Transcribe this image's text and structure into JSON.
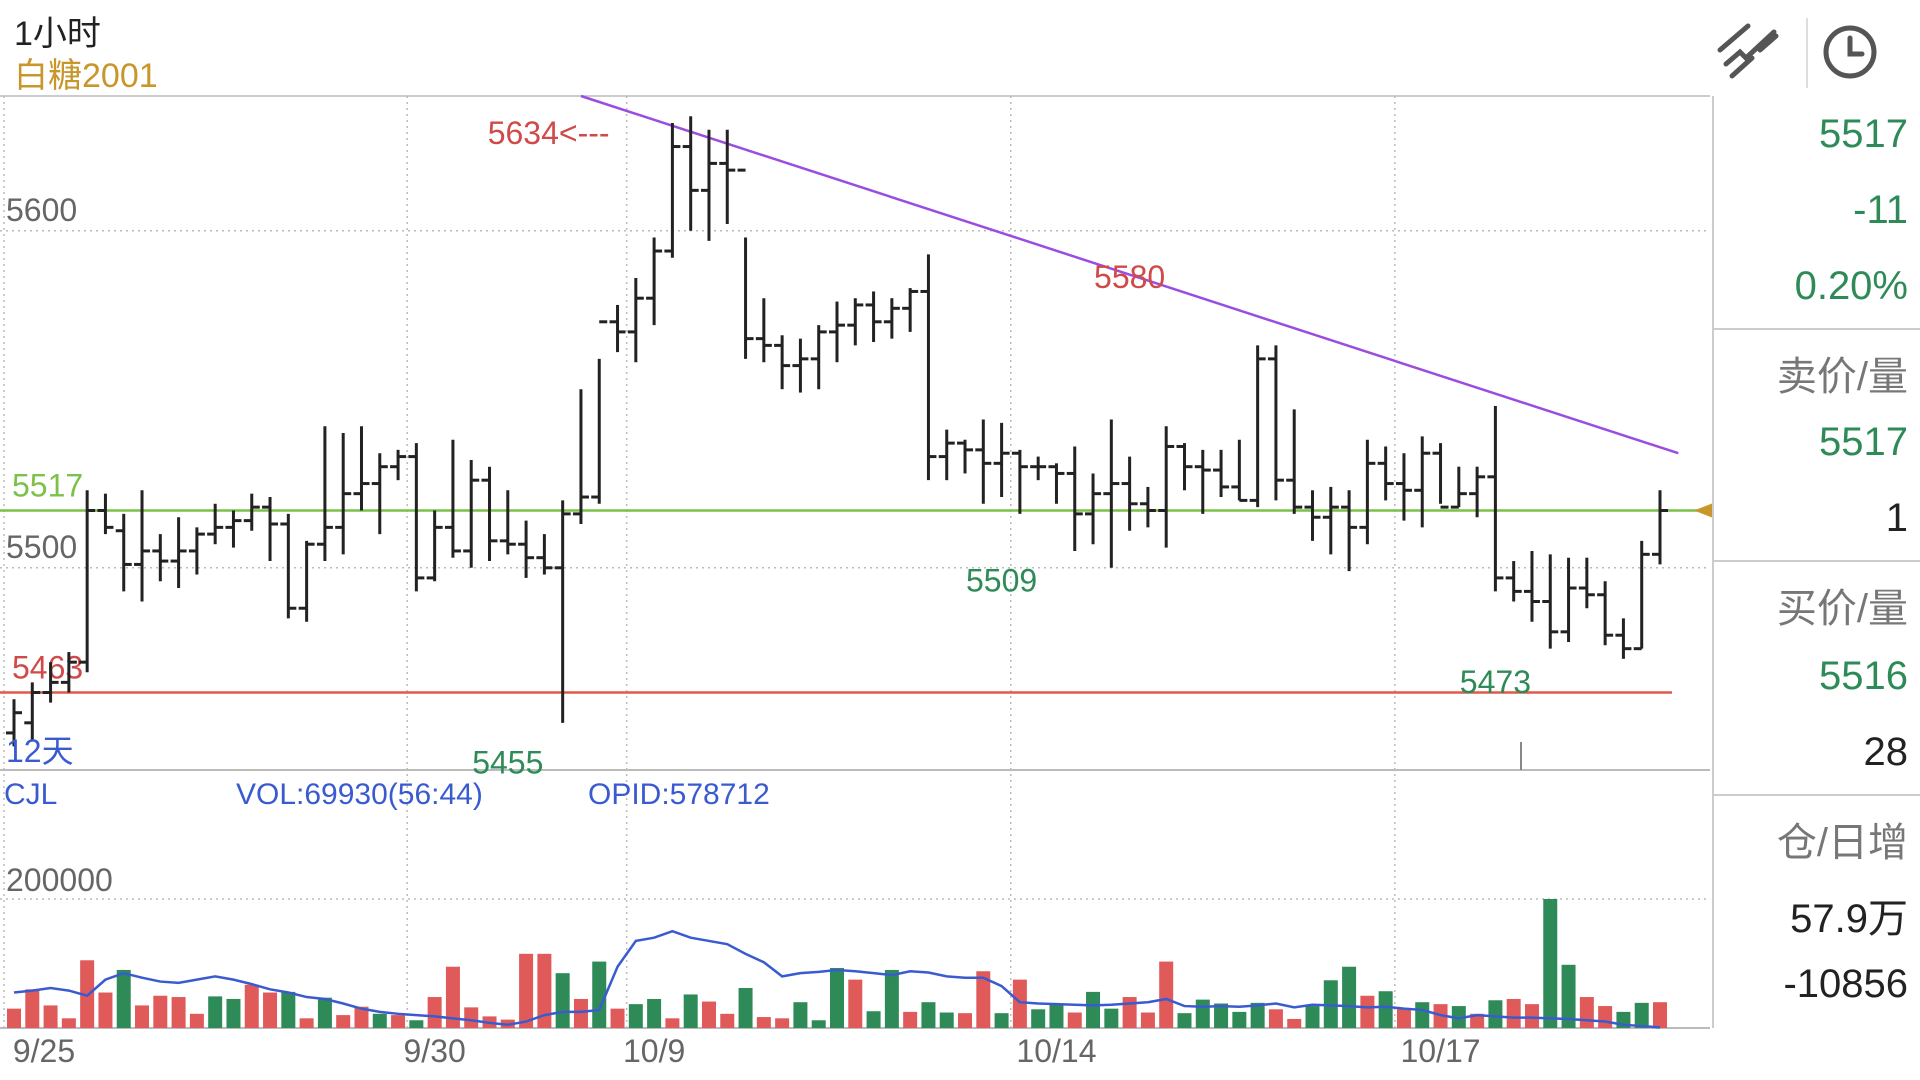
{
  "header": {
    "period": "1小时",
    "symbol": "白糖2001",
    "icons": [
      "drawing-tool-icon",
      "clock-icon"
    ]
  },
  "colors": {
    "up": "#e05a5a",
    "down": "#2e8b57",
    "bar": "#222222",
    "trendline": "#9b4de0",
    "support": "#e05a4a",
    "current": "#7cc14a",
    "opid": "#3a5bd0",
    "price_label_green": "#2e8b57",
    "price_label_red": "#d04a4a"
  },
  "chart_data": [
    {
      "type": "ohlc",
      "ylim": [
        5440,
        5640
      ],
      "y_ticks": [
        "5600",
        "5500"
      ],
      "y_tick_values": [
        5600,
        5500
      ],
      "x_tick_labels": [
        "9/25",
        "9/30",
        "10/9",
        "10/14",
        "10/17"
      ],
      "x_tick_index": [
        2,
        23,
        35,
        57,
        78
      ],
      "date_gridlines_index": [
        0,
        21,
        33,
        54,
        75
      ],
      "bars": [
        [
          5451,
          5461,
          5447,
          5457
        ],
        [
          5454,
          5466,
          5449,
          5463
        ],
        [
          5463,
          5472,
          5460,
          5466
        ],
        [
          5466,
          5475,
          5463,
          5472
        ],
        [
          5472,
          5523,
          5469,
          5517
        ],
        [
          5517,
          5522,
          5510,
          5512
        ],
        [
          5511,
          5516,
          5493,
          5501
        ],
        [
          5501,
          5523,
          5490,
          5505
        ],
        [
          5505,
          5510,
          5496,
          5502
        ],
        [
          5502,
          5515,
          5494,
          5505
        ],
        [
          5505,
          5512,
          5498,
          5510
        ],
        [
          5510,
          5519,
          5507,
          5512
        ],
        [
          5512,
          5517,
          5506,
          5514
        ],
        [
          5514,
          5522,
          5511,
          5518
        ],
        [
          5518,
          5521,
          5502,
          5513
        ],
        [
          5513,
          5516,
          5485,
          5488
        ],
        [
          5488,
          5508,
          5484,
          5507
        ],
        [
          5507,
          5542,
          5502,
          5512
        ],
        [
          5512,
          5540,
          5504,
          5522
        ],
        [
          5522,
          5542,
          5517,
          5525
        ],
        [
          5525,
          5534,
          5510,
          5530
        ],
        [
          5530,
          5535,
          5526,
          5533
        ],
        [
          5533,
          5537,
          5493,
          5497
        ],
        [
          5497,
          5517,
          5496,
          5512
        ],
        [
          5512,
          5538,
          5503,
          5505
        ],
        [
          5505,
          5532,
          5500,
          5526
        ],
        [
          5526,
          5530,
          5502,
          5508
        ],
        [
          5508,
          5523,
          5504,
          5507
        ],
        [
          5507,
          5514,
          5497,
          5503
        ],
        [
          5503,
          5510,
          5498,
          5500
        ],
        [
          5500,
          5520,
          5454,
          5516
        ],
        [
          5516,
          5553,
          5513,
          5521
        ],
        [
          5521,
          5562,
          5519,
          5573
        ],
        [
          5573,
          5578,
          5564,
          5570
        ],
        [
          5570,
          5586,
          5561,
          5580
        ],
        [
          5580,
          5598,
          5572,
          5594
        ],
        [
          5594,
          5632,
          5592,
          5625
        ],
        [
          5625,
          5634,
          5600,
          5612
        ],
        [
          5612,
          5630,
          5597,
          5620
        ],
        [
          5620,
          5630,
          5602,
          5618
        ],
        [
          5618,
          5598,
          5562,
          5568
        ],
        [
          5568,
          5580,
          5561,
          5566
        ],
        [
          5566,
          5569,
          5553,
          5560
        ],
        [
          5560,
          5568,
          5552,
          5562
        ],
        [
          5562,
          5572,
          5553,
          5570
        ],
        [
          5570,
          5579,
          5561,
          5572
        ],
        [
          5572,
          5580,
          5566,
          5578
        ],
        [
          5578,
          5582,
          5567,
          5573
        ],
        [
          5573,
          5580,
          5568,
          5577
        ],
        [
          5577,
          5583,
          5570,
          5582
        ],
        [
          5582,
          5593,
          5526,
          5533
        ],
        [
          5533,
          5541,
          5526,
          5537
        ],
        [
          5537,
          5538,
          5528,
          5535
        ],
        [
          5535,
          5544,
          5519,
          5531
        ],
        [
          5531,
          5543,
          5521,
          5534
        ],
        [
          5534,
          5535,
          5516,
          5530
        ],
        [
          5530,
          5533,
          5526,
          5530
        ],
        [
          5530,
          5531,
          5519,
          5528
        ],
        [
          5528,
          5536,
          5505,
          5516
        ],
        [
          5516,
          5528,
          5507,
          5522
        ],
        [
          5522,
          5544,
          5500,
          5525
        ],
        [
          5525,
          5533,
          5511,
          5519
        ],
        [
          5519,
          5524,
          5512,
          5517
        ],
        [
          5517,
          5542,
          5506,
          5536
        ],
        [
          5536,
          5537,
          5523,
          5530
        ],
        [
          5530,
          5535,
          5516,
          5529
        ],
        [
          5529,
          5535,
          5521,
          5524
        ],
        [
          5524,
          5538,
          5520,
          5520
        ],
        [
          5520,
          5566,
          5518,
          5562
        ],
        [
          5562,
          5566,
          5520,
          5526
        ],
        [
          5526,
          5547,
          5516,
          5518
        ],
        [
          5518,
          5523,
          5508,
          5515
        ],
        [
          5515,
          5524,
          5504,
          5518
        ],
        [
          5518,
          5523,
          5499,
          5512
        ],
        [
          5512,
          5538,
          5507,
          5531
        ],
        [
          5531,
          5536,
          5520,
          5525
        ],
        [
          5525,
          5534,
          5514,
          5523
        ],
        [
          5523,
          5539,
          5512,
          5534
        ],
        [
          5534,
          5537,
          5519,
          5518
        ],
        [
          5518,
          5530,
          5518,
          5522
        ],
        [
          5522,
          5530,
          5515,
          5527
        ],
        [
          5527,
          5548,
          5493,
          5497
        ],
        [
          5497,
          5502,
          5490,
          5493
        ],
        [
          5493,
          5505,
          5484,
          5490
        ],
        [
          5490,
          5504,
          5476,
          5481
        ],
        [
          5481,
          5503,
          5478,
          5494
        ],
        [
          5494,
          5503,
          5488,
          5492
        ],
        [
          5492,
          5496,
          5477,
          5480
        ],
        [
          5480,
          5485,
          5473,
          5476
        ],
        [
          5476,
          5508,
          5476,
          5504
        ],
        [
          5504,
          5523,
          5501,
          5517
        ]
      ],
      "horizontal_lines": [
        {
          "name": "current-price-line",
          "value": 5517,
          "label": "5517"
        },
        {
          "name": "support-line",
          "value": 5463,
          "label": "5463"
        }
      ],
      "trendline": {
        "from": [
          31,
          5640
        ],
        "to": [
          91,
          5534
        ]
      },
      "annotations": [
        {
          "name": "high-label",
          "text": "5634<---",
          "index": 33,
          "value": 5634,
          "color": "red"
        },
        {
          "name": "peak-label",
          "text": "5580",
          "index": 61,
          "value": 5580,
          "color": "red"
        },
        {
          "name": "low-label-1",
          "text": "5455",
          "index": 27,
          "value": 5455,
          "color": "green"
        },
        {
          "name": "low-label-2",
          "text": "5509",
          "index": 54,
          "value": 5509,
          "color": "green"
        },
        {
          "name": "low-label-3",
          "text": "5473",
          "index": 81,
          "value": 5473,
          "color": "green"
        }
      ],
      "period_badge": "12天"
    },
    {
      "type": "bar",
      "indicator": "CJL",
      "vol_label": "VOL:69930(56:44)",
      "opid_label": "OPID:578712",
      "ylim": [
        0,
        400000
      ],
      "y_ticks": [
        "200000"
      ],
      "y_tick_values": [
        200000
      ],
      "volume": [
        {
          "v": 30000,
          "c": "u"
        },
        {
          "v": 60000,
          "c": "u"
        },
        {
          "v": 35000,
          "c": "u"
        },
        {
          "v": 15000,
          "c": "u"
        },
        {
          "v": 105000,
          "c": "u"
        },
        {
          "v": 55000,
          "c": "u"
        },
        {
          "v": 90000,
          "c": "d"
        },
        {
          "v": 35000,
          "c": "u"
        },
        {
          "v": 50000,
          "c": "u"
        },
        {
          "v": 48000,
          "c": "u"
        },
        {
          "v": 22000,
          "c": "u"
        },
        {
          "v": 49000,
          "c": "d"
        },
        {
          "v": 45000,
          "c": "d"
        },
        {
          "v": 67000,
          "c": "u"
        },
        {
          "v": 55000,
          "c": "u"
        },
        {
          "v": 56000,
          "c": "d"
        },
        {
          "v": 15000,
          "c": "u"
        },
        {
          "v": 47000,
          "c": "d"
        },
        {
          "v": 20000,
          "c": "u"
        },
        {
          "v": 33000,
          "c": "u"
        },
        {
          "v": 22000,
          "c": "d"
        },
        {
          "v": 20000,
          "c": "u"
        },
        {
          "v": 12000,
          "c": "d"
        },
        {
          "v": 48000,
          "c": "u"
        },
        {
          "v": 95000,
          "c": "u"
        },
        {
          "v": 32000,
          "c": "u"
        },
        {
          "v": 18000,
          "c": "u"
        },
        {
          "v": 13000,
          "c": "u"
        },
        {
          "v": 115000,
          "c": "u"
        },
        {
          "v": 115000,
          "c": "u"
        },
        {
          "v": 85000,
          "c": "d"
        },
        {
          "v": 45000,
          "c": "u"
        },
        {
          "v": 103000,
          "c": "d"
        },
        {
          "v": 30000,
          "c": "u"
        },
        {
          "v": 37000,
          "c": "d"
        },
        {
          "v": 45000,
          "c": "d"
        },
        {
          "v": 15000,
          "c": "u"
        },
        {
          "v": 52000,
          "c": "d"
        },
        {
          "v": 41000,
          "c": "u"
        },
        {
          "v": 22000,
          "c": "u"
        },
        {
          "v": 62000,
          "c": "d"
        },
        {
          "v": 17000,
          "c": "u"
        },
        {
          "v": 15000,
          "c": "u"
        },
        {
          "v": 40000,
          "c": "d"
        },
        {
          "v": 12000,
          "c": "d"
        },
        {
          "v": 93000,
          "c": "d"
        },
        {
          "v": 75000,
          "c": "u"
        },
        {
          "v": 26000,
          "c": "d"
        },
        {
          "v": 90000,
          "c": "d"
        },
        {
          "v": 25000,
          "c": "u"
        },
        {
          "v": 40000,
          "c": "d"
        },
        {
          "v": 24000,
          "c": "d"
        },
        {
          "v": 23000,
          "c": "u"
        },
        {
          "v": 88000,
          "c": "u"
        },
        {
          "v": 23000,
          "c": "d"
        },
        {
          "v": 75000,
          "c": "u"
        },
        {
          "v": 29000,
          "c": "d"
        },
        {
          "v": 36000,
          "c": "d"
        },
        {
          "v": 24000,
          "c": "u"
        },
        {
          "v": 56000,
          "c": "d"
        },
        {
          "v": 30000,
          "c": "d"
        },
        {
          "v": 48000,
          "c": "u"
        },
        {
          "v": 24000,
          "c": "u"
        },
        {
          "v": 103000,
          "c": "u"
        },
        {
          "v": 23000,
          "c": "d"
        },
        {
          "v": 44000,
          "c": "d"
        },
        {
          "v": 38000,
          "c": "d"
        },
        {
          "v": 25000,
          "c": "d"
        },
        {
          "v": 39000,
          "c": "d"
        },
        {
          "v": 29000,
          "c": "u"
        },
        {
          "v": 14000,
          "c": "u"
        },
        {
          "v": 34000,
          "c": "d"
        },
        {
          "v": 74000,
          "c": "d"
        },
        {
          "v": 95000,
          "c": "d"
        },
        {
          "v": 50000,
          "c": "u"
        },
        {
          "v": 57000,
          "c": "d"
        },
        {
          "v": 31000,
          "c": "u"
        },
        {
          "v": 40000,
          "c": "d"
        },
        {
          "v": 37000,
          "c": "u"
        },
        {
          "v": 34000,
          "c": "d"
        },
        {
          "v": 22000,
          "c": "u"
        },
        {
          "v": 43000,
          "c": "d"
        },
        {
          "v": 45000,
          "c": "u"
        },
        {
          "v": 37000,
          "c": "u"
        },
        {
          "v": 200000,
          "c": "d"
        },
        {
          "v": 98000,
          "c": "d"
        },
        {
          "v": 48000,
          "c": "u"
        },
        {
          "v": 34000,
          "c": "u"
        },
        {
          "v": 25000,
          "c": "d"
        },
        {
          "v": 39000,
          "c": "d"
        },
        {
          "v": 40000,
          "c": "u"
        }
      ],
      "opid_line": [
        55000,
        58000,
        62000,
        58000,
        50000,
        75000,
        85000,
        78000,
        72000,
        70000,
        75000,
        80000,
        75000,
        68000,
        60000,
        55000,
        48000,
        45000,
        38000,
        30000,
        25000,
        22000,
        20000,
        18000,
        15000,
        12000,
        8000,
        5000,
        10000,
        20000,
        25000,
        25000,
        28000,
        95000,
        135000,
        140000,
        150000,
        140000,
        135000,
        130000,
        115000,
        102000,
        80000,
        85000,
        87000,
        90000,
        88000,
        85000,
        82000,
        88000,
        86000,
        80000,
        78000,
        78000,
        65000,
        40000,
        38000,
        37000,
        36000,
        35000,
        36000,
        38000,
        40000,
        45000,
        34000,
        33000,
        34000,
        33000,
        35000,
        38000,
        32000,
        36000,
        35000,
        34000,
        32000,
        33000,
        30000,
        28000,
        20000,
        15000,
        20000,
        18000,
        16000,
        16000,
        15000,
        14000,
        12000,
        10000,
        5000,
        3000,
        1000
      ]
    }
  ],
  "sidebar": {
    "last_price": "5517",
    "change": "-11",
    "change_pct": "0.20%",
    "ask_label": "卖价/量",
    "ask_price": "5517",
    "ask_volume": "1",
    "bid_label": "买价/量",
    "bid_price": "5516",
    "bid_volume": "28",
    "oi_label": "仓/日增",
    "oi_value": "57.9万",
    "oi_change": "-10856"
  }
}
